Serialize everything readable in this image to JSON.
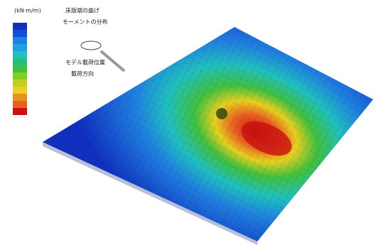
{
  "header": {
    "unit": "(kN·m/m)",
    "title_line1": "床版端の曲げ",
    "title_line2": "モーメントの分布"
  },
  "annotations": {
    "load_position": "モデル載荷位置",
    "load_direction": "載荷方向"
  }
}
